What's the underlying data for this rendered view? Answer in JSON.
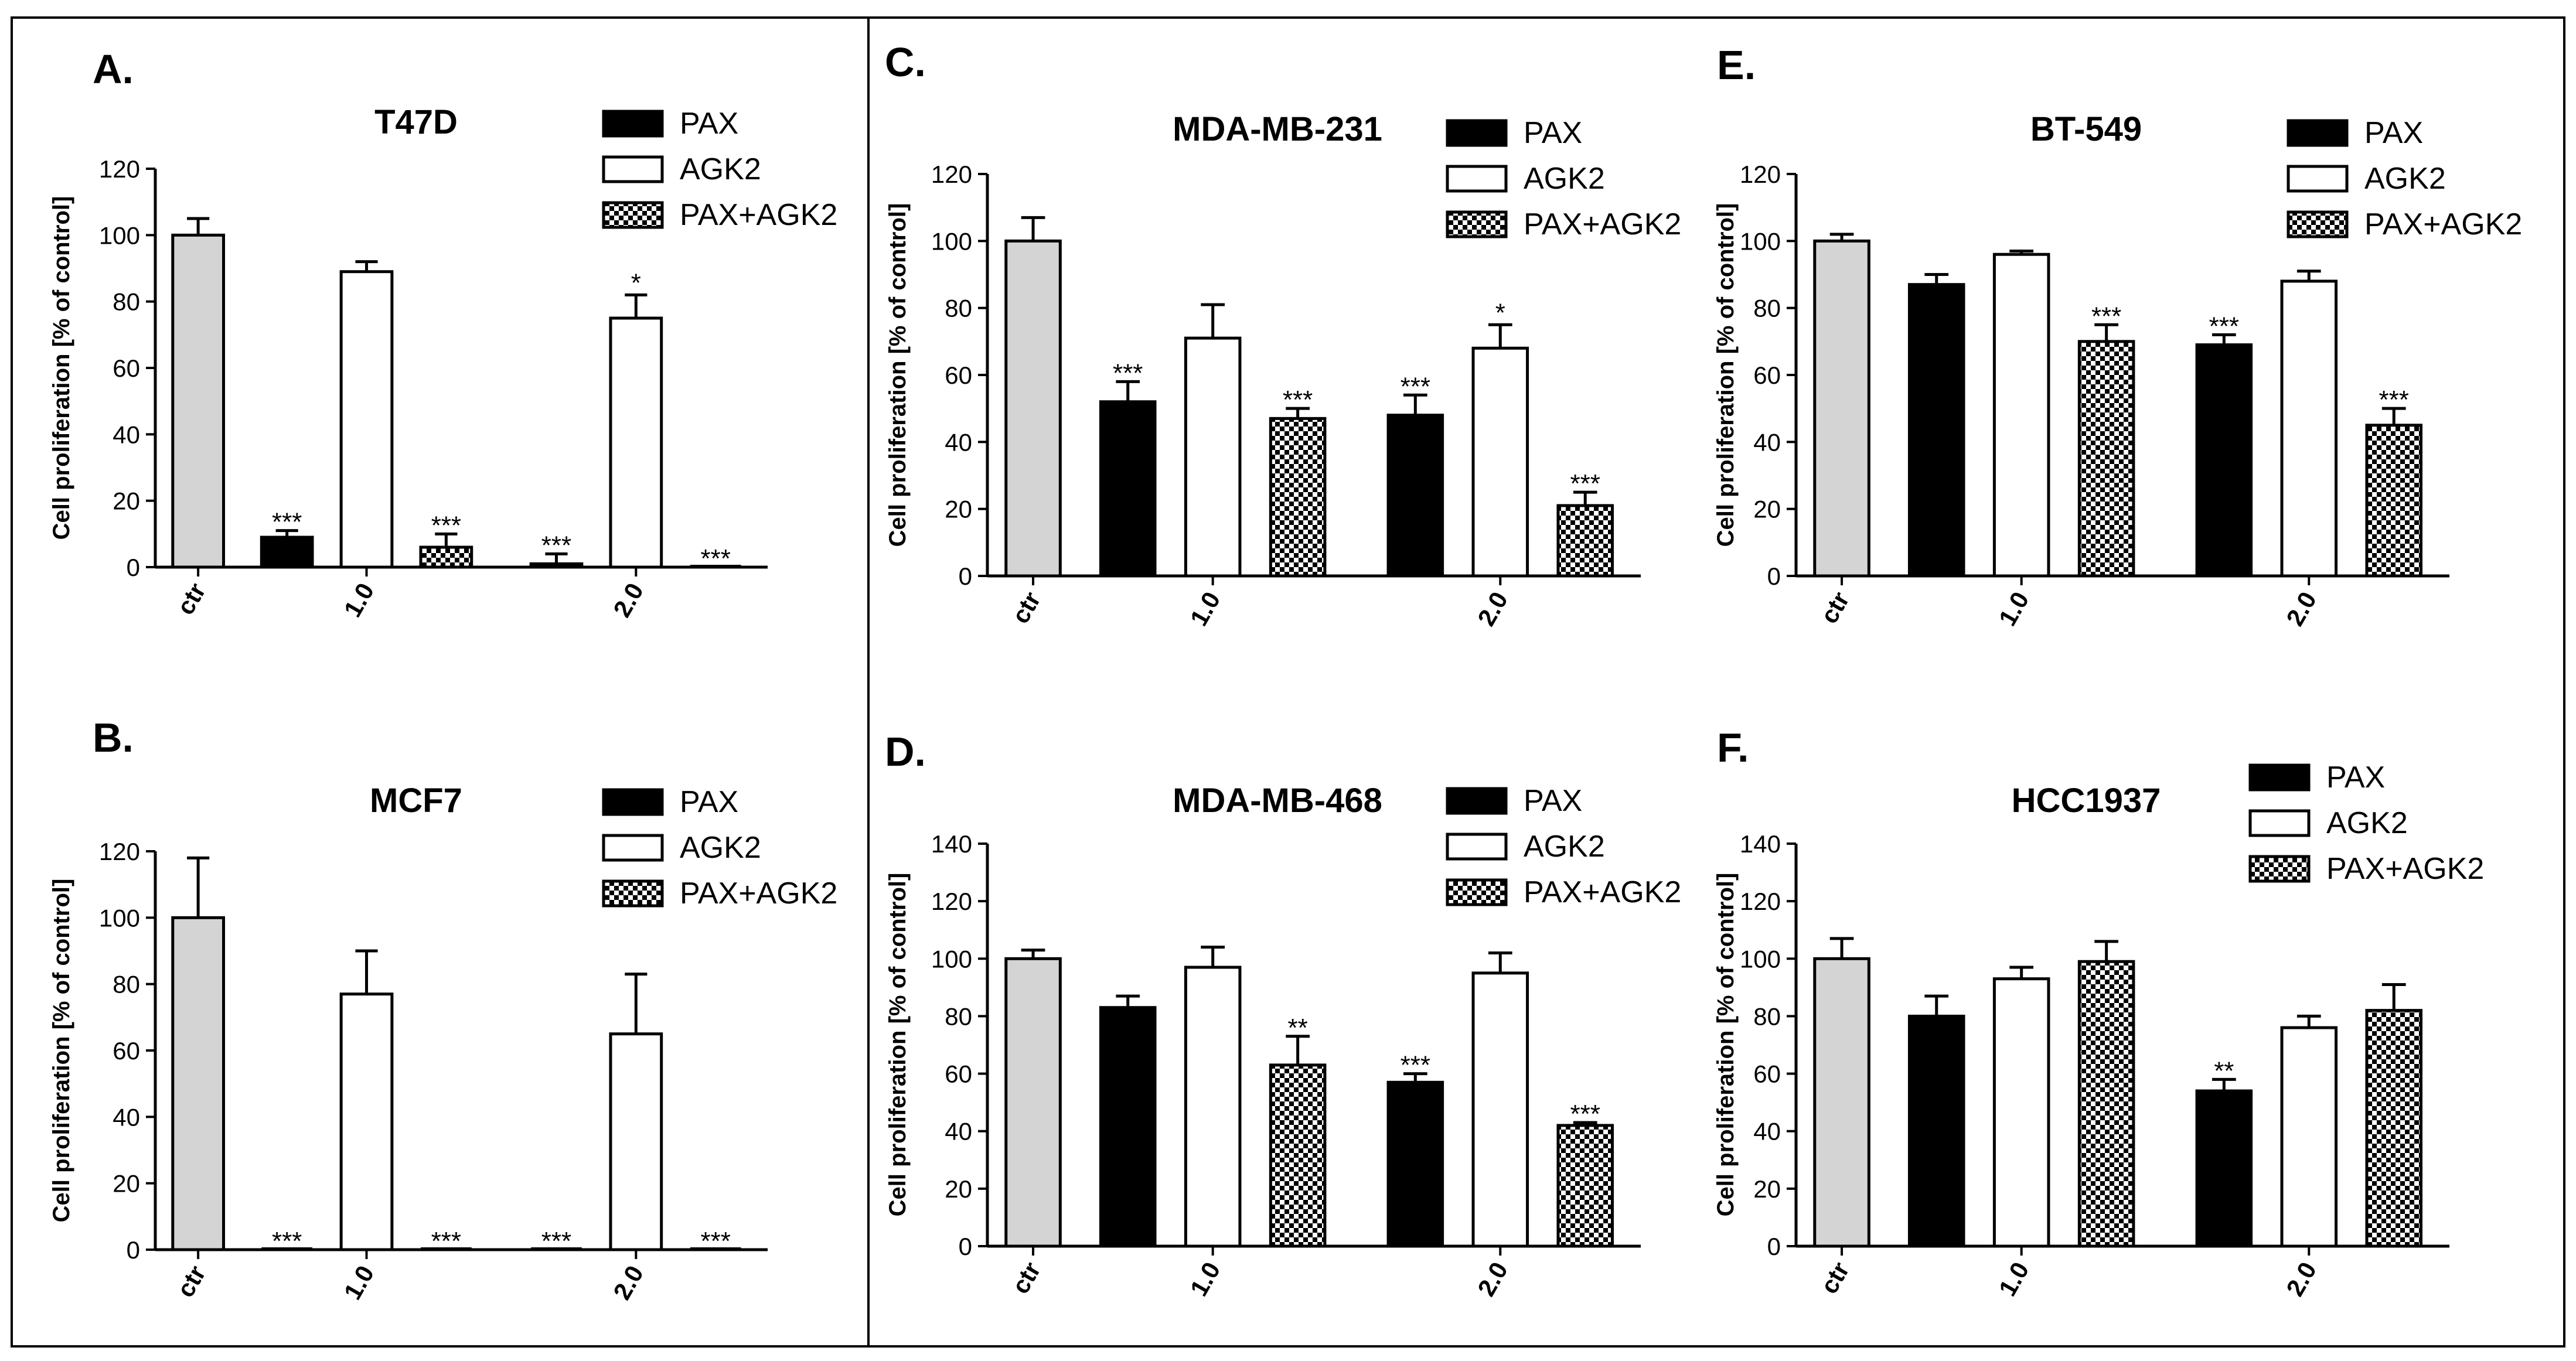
{
  "colors": {
    "ctr": "#d4d4d4",
    "pax": "#000000",
    "agk2": "#ffffff",
    "combo_pattern": "checkerboard",
    "frame": "#000000"
  },
  "chart_data": [
    {
      "panel": "A.",
      "type": "bar",
      "title": "T47D",
      "ylabel": "Cell proliferation [% of control]",
      "ylim": [
        0,
        120
      ],
      "yticks": [
        0,
        20,
        40,
        60,
        80,
        100,
        120
      ],
      "categories": [
        "ctr",
        "1.0",
        "2.0"
      ],
      "legend": [
        "PAX",
        "AGK2",
        "PAX+AGK2"
      ],
      "bars": [
        {
          "group": "ctr",
          "series": "ctr",
          "value": 100,
          "error": 5,
          "label": ""
        },
        {
          "group": "1.0",
          "series": "PAX",
          "value": 9,
          "error": 2,
          "label": "***"
        },
        {
          "group": "1.0",
          "series": "AGK2",
          "value": 89,
          "error": 3,
          "label": ""
        },
        {
          "group": "1.0",
          "series": "PAX+AGK2",
          "value": 6,
          "error": 4,
          "label": "***"
        },
        {
          "group": "2.0",
          "series": "PAX",
          "value": 1,
          "error": 3,
          "label": "***"
        },
        {
          "group": "2.0",
          "series": "AGK2",
          "value": 75,
          "error": 7,
          "label": "*"
        },
        {
          "group": "2.0",
          "series": "PAX+AGK2",
          "value": 0,
          "error": 0,
          "label": "***"
        }
      ]
    },
    {
      "panel": "B.",
      "type": "bar",
      "title": "MCF7",
      "ylabel": "Cell proliferation [% of control]",
      "ylim": [
        0,
        120
      ],
      "yticks": [
        0,
        20,
        40,
        60,
        80,
        100,
        120
      ],
      "categories": [
        "ctr",
        "1.0",
        "2.0"
      ],
      "legend": [
        "PAX",
        "AGK2",
        "PAX+AGK2"
      ],
      "bars": [
        {
          "group": "ctr",
          "series": "ctr",
          "value": 100,
          "error": 18,
          "label": ""
        },
        {
          "group": "1.0",
          "series": "PAX",
          "value": 0,
          "error": 0,
          "label": "***"
        },
        {
          "group": "1.0",
          "series": "AGK2",
          "value": 77,
          "error": 13,
          "label": ""
        },
        {
          "group": "1.0",
          "series": "PAX+AGK2",
          "value": 0,
          "error": 0,
          "label": "***"
        },
        {
          "group": "2.0",
          "series": "PAX",
          "value": 0,
          "error": 0,
          "label": "***"
        },
        {
          "group": "2.0",
          "series": "AGK2",
          "value": 65,
          "error": 18,
          "label": ""
        },
        {
          "group": "2.0",
          "series": "PAX+AGK2",
          "value": 0,
          "error": 0,
          "label": "***"
        }
      ]
    },
    {
      "panel": "C.",
      "type": "bar",
      "title": "MDA-MB-231",
      "ylabel": "Cell proliferation [% of control]",
      "ylim": [
        0,
        120
      ],
      "yticks": [
        0,
        20,
        40,
        60,
        80,
        100,
        120
      ],
      "categories": [
        "ctr",
        "1.0",
        "2.0"
      ],
      "legend": [
        "PAX",
        "AGK2",
        "PAX+AGK2"
      ],
      "bars": [
        {
          "group": "ctr",
          "series": "ctr",
          "value": 100,
          "error": 7,
          "label": ""
        },
        {
          "group": "1.0",
          "series": "PAX",
          "value": 52,
          "error": 6,
          "label": "***"
        },
        {
          "group": "1.0",
          "series": "AGK2",
          "value": 71,
          "error": 10,
          "label": ""
        },
        {
          "group": "1.0",
          "series": "PAX+AGK2",
          "value": 47,
          "error": 3,
          "label": "***"
        },
        {
          "group": "2.0",
          "series": "PAX",
          "value": 48,
          "error": 6,
          "label": "***"
        },
        {
          "group": "2.0",
          "series": "AGK2",
          "value": 68,
          "error": 7,
          "label": "*"
        },
        {
          "group": "2.0",
          "series": "PAX+AGK2",
          "value": 21,
          "error": 4,
          "label": "***"
        }
      ]
    },
    {
      "panel": "D.",
      "type": "bar",
      "title": "MDA-MB-468",
      "ylabel": "Cell proliferation [% of control]",
      "ylim": [
        0,
        140
      ],
      "yticks": [
        0,
        20,
        40,
        60,
        80,
        100,
        120,
        140
      ],
      "categories": [
        "ctr",
        "1.0",
        "2.0"
      ],
      "legend": [
        "PAX",
        "AGK2",
        "PAX+AGK2"
      ],
      "bars": [
        {
          "group": "ctr",
          "series": "ctr",
          "value": 100,
          "error": 3,
          "label": ""
        },
        {
          "group": "1.0",
          "series": "PAX",
          "value": 83,
          "error": 4,
          "label": ""
        },
        {
          "group": "1.0",
          "series": "AGK2",
          "value": 97,
          "error": 7,
          "label": ""
        },
        {
          "group": "1.0",
          "series": "PAX+AGK2",
          "value": 63,
          "error": 10,
          "label": "**"
        },
        {
          "group": "2.0",
          "series": "PAX",
          "value": 57,
          "error": 3,
          "label": "***"
        },
        {
          "group": "2.0",
          "series": "AGK2",
          "value": 95,
          "error": 7,
          "label": ""
        },
        {
          "group": "2.0",
          "series": "PAX+AGK2",
          "value": 42,
          "error": 1,
          "label": "***"
        }
      ]
    },
    {
      "panel": "E.",
      "type": "bar",
      "title": "BT-549",
      "ylabel": "Cell proliferation [% of control]",
      "ylim": [
        0,
        120
      ],
      "yticks": [
        0,
        20,
        40,
        60,
        80,
        100,
        120
      ],
      "categories": [
        "ctr",
        "1.0",
        "2.0"
      ],
      "legend": [
        "PAX",
        "AGK2",
        "PAX+AGK2"
      ],
      "bars": [
        {
          "group": "ctr",
          "series": "ctr",
          "value": 100,
          "error": 2,
          "label": ""
        },
        {
          "group": "1.0",
          "series": "PAX",
          "value": 87,
          "error": 3,
          "label": ""
        },
        {
          "group": "1.0",
          "series": "AGK2",
          "value": 96,
          "error": 1,
          "label": ""
        },
        {
          "group": "1.0",
          "series": "PAX+AGK2",
          "value": 70,
          "error": 5,
          "label": "***"
        },
        {
          "group": "2.0",
          "series": "PAX",
          "value": 69,
          "error": 3,
          "label": "***"
        },
        {
          "group": "2.0",
          "series": "AGK2",
          "value": 88,
          "error": 3,
          "label": ""
        },
        {
          "group": "2.0",
          "series": "PAX+AGK2",
          "value": 45,
          "error": 5,
          "label": "***"
        }
      ]
    },
    {
      "panel": "F.",
      "type": "bar",
      "title": "HCC1937",
      "ylabel": "Cell proliferation [% of control]",
      "ylim": [
        0,
        140
      ],
      "yticks": [
        0,
        20,
        40,
        60,
        80,
        100,
        120,
        140
      ],
      "categories": [
        "ctr",
        "1.0",
        "2.0"
      ],
      "legend": [
        "PAX",
        "AGK2",
        "PAX+AGK2"
      ],
      "bars": [
        {
          "group": "ctr",
          "series": "ctr",
          "value": 100,
          "error": 7,
          "label": ""
        },
        {
          "group": "1.0",
          "series": "PAX",
          "value": 80,
          "error": 7,
          "label": ""
        },
        {
          "group": "1.0",
          "series": "AGK2",
          "value": 93,
          "error": 4,
          "label": ""
        },
        {
          "group": "1.0",
          "series": "PAX+AGK2",
          "value": 99,
          "error": 7,
          "label": ""
        },
        {
          "group": "2.0",
          "series": "PAX",
          "value": 54,
          "error": 4,
          "label": "**"
        },
        {
          "group": "2.0",
          "series": "AGK2",
          "value": 76,
          "error": 4,
          "label": ""
        },
        {
          "group": "2.0",
          "series": "PAX+AGK2",
          "value": 82,
          "error": 9,
          "label": ""
        }
      ]
    }
  ]
}
